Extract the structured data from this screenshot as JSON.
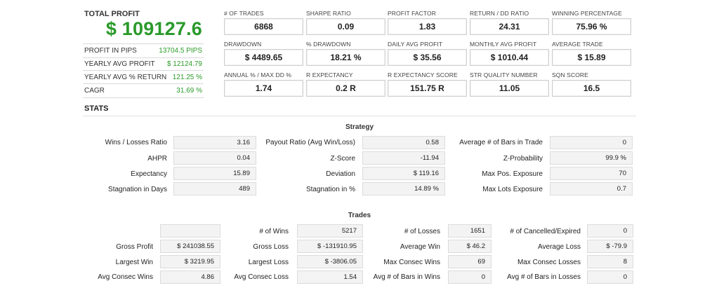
{
  "summary": {
    "title": "TOTAL PROFIT",
    "value": "$ 109127.6",
    "rows": [
      {
        "label": "PROFIT IN PIPS",
        "value": "13704.5 PIPS"
      },
      {
        "label": "YEARLY AVG PROFIT",
        "value": "$ 12124.79"
      },
      {
        "label": "YEARLY AVG % RETURN",
        "value": "121.25 %"
      },
      {
        "label": "CAGR",
        "value": "31.69 %"
      }
    ]
  },
  "metrics": [
    [
      {
        "label": "# OF TRADES",
        "value": "6868"
      },
      {
        "label": "SHARPE RATIO",
        "value": "0.09"
      },
      {
        "label": "PROFIT FACTOR",
        "value": "1.83"
      },
      {
        "label": "RETURN / DD RATIO",
        "value": "24.31"
      },
      {
        "label": "WINNING PERCENTAGE",
        "value": "75.96 %"
      }
    ],
    [
      {
        "label": "DRAWDOWN",
        "value": "$ 4489.65"
      },
      {
        "label": "% DRAWDOWN",
        "value": "18.21 %"
      },
      {
        "label": "DAILY AVG PROFIT",
        "value": "$ 35.56"
      },
      {
        "label": "MONTHLY AVG PROFIT",
        "value": "$ 1010.44"
      },
      {
        "label": "AVERAGE TRADE",
        "value": "$ 15.89"
      }
    ],
    [
      {
        "label": "ANNUAL % / MAX DD %",
        "value": "1.74"
      },
      {
        "label": "R EXPECTANCY",
        "value": "0.2 R"
      },
      {
        "label": "R EXPECTANCY SCORE",
        "value": "151.75 R"
      },
      {
        "label": "STR QUALITY NUMBER",
        "value": "11.05"
      },
      {
        "label": "SQN SCORE",
        "value": "16.5"
      }
    ]
  ],
  "stats_title": "STATS",
  "strategy": {
    "title": "Strategy",
    "rows": [
      [
        {
          "label": "Wins / Losses Ratio",
          "value": "3.16"
        },
        {
          "label": "Payout Ratio (Avg Win/Loss)",
          "value": "0.58"
        },
        {
          "label": "Average # of Bars in Trade",
          "value": "0"
        }
      ],
      [
        {
          "label": "AHPR",
          "value": "0.04"
        },
        {
          "label": "Z-Score",
          "value": "-11.94"
        },
        {
          "label": "Z-Probability",
          "value": "99.9 %"
        }
      ],
      [
        {
          "label": "Expectancy",
          "value": "15.89"
        },
        {
          "label": "Deviation",
          "value": "$ 119.16"
        },
        {
          "label": "Max Pos. Exposure",
          "value": "70"
        }
      ],
      [
        {
          "label": "Stagnation in Days",
          "value": "489"
        },
        {
          "label": "Stagnation in %",
          "value": "14.89 %"
        },
        {
          "label": "Max Lots Exposure",
          "value": "0.7"
        }
      ]
    ]
  },
  "trades": {
    "title": "Trades",
    "rows": [
      [
        {
          "label": "",
          "value": ""
        },
        {
          "label": "# of Wins",
          "value": "5217"
        },
        {
          "label": "# of Losses",
          "value": "1651"
        },
        {
          "label": "# of Cancelled/Expired",
          "value": "0"
        }
      ],
      [
        {
          "label": "Gross Profit",
          "value": "$ 241038.55"
        },
        {
          "label": "Gross Loss",
          "value": "$ -131910.95"
        },
        {
          "label": "Average Win",
          "value": "$ 46.2"
        },
        {
          "label": "Average Loss",
          "value": "$ -79.9"
        }
      ],
      [
        {
          "label": "Largest Win",
          "value": "$ 3219.95"
        },
        {
          "label": "Largest Loss",
          "value": "$ -3806.05"
        },
        {
          "label": "Max Consec Wins",
          "value": "69"
        },
        {
          "label": "Max Consec Losses",
          "value": "8"
        }
      ],
      [
        {
          "label": "Avg Consec Wins",
          "value": "4.86"
        },
        {
          "label": "Avg Consec Loss",
          "value": "1.54"
        },
        {
          "label": "Avg # of Bars in Wins",
          "value": "0"
        },
        {
          "label": "Avg # of Bars in Losses",
          "value": "0"
        }
      ]
    ]
  }
}
